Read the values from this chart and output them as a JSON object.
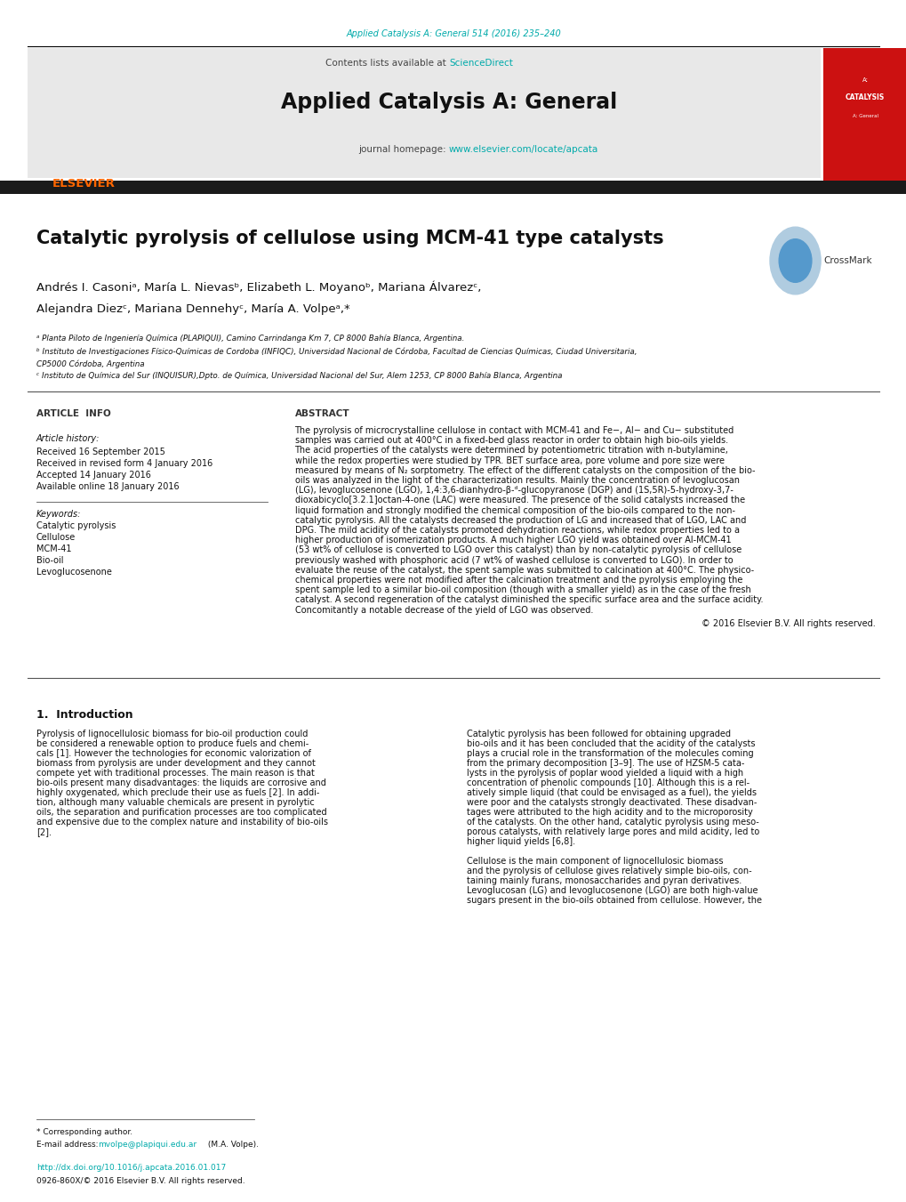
{
  "page_width": 10.2,
  "page_height": 13.51,
  "bg_color": "#ffffff",
  "header_citation": "Applied Catalysis A: General 514 (2016) 235–240",
  "header_citation_color": "#00aaaa",
  "journal_header_bg": "#e8e8e8",
  "journal_name": "Applied Catalysis A: General",
  "contents_text": "Contents lists available at ",
  "sciencedirect_text": "ScienceDirect",
  "sciencedirect_color": "#00aaaa",
  "journal_homepage_text": "journal homepage: ",
  "journal_url": "www.elsevier.com/locate/apcata",
  "journal_url_color": "#00aaaa",
  "elsevier_color": "#ff6600",
  "dark_bar_color": "#1a1a1a",
  "title": "Catalytic pyrolysis of cellulose using MCM-41 type catalysts",
  "author_line1": "Andrés I. Casoniᵃ, María L. Nievasᵇ, Elizabeth L. Moyanoᵇ, Mariana Álvarezᶜ,",
  "author_line2": "Alejandra Diezᶜ, Mariana Dennehyᶜ, María A. Volpeᵃ,*",
  "affiliation_a": "ᵃ Planta Piloto de Ingeniería Química (PLAPIQUI), Camino Carrindanga Km 7, CP 8000 Bahía Blanca, Argentina.",
  "affiliation_b1": "ᵇ Instituto de Investigaciones Físico-Químicas de Cordoba (INFIQC), Universidad Nacional de Córdoba, Facultad de Ciencias Químicas, Ciudad Universitaria,",
  "affiliation_b2": "CP5000 Córdoba, Argentina",
  "affiliation_c": "ᶜ Instituto de Química del Sur (INQUISUR),Dpto. de Química, Universidad Nacional del Sur, Alem 1253, CP 8000 Bahía Blanca, Argentina",
  "article_info_title": "ARTICLE  INFO",
  "article_history_label": "Article history:",
  "received_date": "Received 16 September 2015",
  "revised_date": "Received in revised form 4 January 2016",
  "accepted_date": "Accepted 14 January 2016",
  "available_date": "Available online 18 January 2016",
  "keywords_label": "Keywords:",
  "keyword1": "Catalytic pyrolysis",
  "keyword2": "Cellulose",
  "keyword3": "MCM-41",
  "keyword4": "Bio-oil",
  "keyword5": "Levoglucosenone",
  "abstract_title": "ABSTRACT",
  "abstract_text": "The pyrolysis of microcrystalline cellulose in contact with MCM-41 and Fe−, Al− and Cu− substituted\nsamples was carried out at 400°C in a fixed-bed glass reactor in order to obtain high bio-oils yields.\nThe acid properties of the catalysts were determined by potentiometric titration with n-butylamine,\nwhile the redox properties were studied by TPR. BET surface area, pore volume and pore size were\nmeasured by means of N₂ sorptometry. The effect of the different catalysts on the composition of the bio-\noils was analyzed in the light of the characterization results. Mainly the concentration of levoglucosan\n(LG), levoglucosenone (LGO), 1,4:3,6-dianhydro-β-ᵈ-glucopyranose (DGP) and (1S,5R)-5-hydroxy-3,7-\ndioxabicyclo[3.2.1]octan-4-one (LAC) were measured. The presence of the solid catalysts increased the\nliquid formation and strongly modified the chemical composition of the bio-oils compared to the non-\ncatalytic pyrolysis. All the catalysts decreased the production of LG and increased that of LGO, LAC and\nDPG. The mild acidity of the catalysts promoted dehydration reactions, while redox properties led to a\nhigher production of isomerization products. A much higher LGO yield was obtained over Al-MCM-41\n(53 wt% of cellulose is converted to LGO over this catalyst) than by non-catalytic pyrolysis of cellulose\npreviously washed with phosphoric acid (7 wt% of washed cellulose is converted to LGO). In order to\nevaluate the reuse of the catalyst, the spent sample was submitted to calcination at 400°C. The physico-\nchemical properties were not modified after the calcination treatment and the pyrolysis employing the\nspent sample led to a similar bio-oil composition (though with a smaller yield) as in the case of the fresh\ncatalyst. A second regeneration of the catalyst diminished the specific surface area and the surface acidity.\nConcomitantly a notable decrease of the yield of LGO was observed.",
  "copyright_text": "© 2016 Elsevier B.V. All rights reserved.",
  "intro_title": "1.  Introduction",
  "intro_col1": "Pyrolysis of lignocellulosic biomass for bio-oil production could\nbe considered a renewable option to produce fuels and chemi-\ncals [1]. However the technologies for economic valorization of\nbiomass from pyrolysis are under development and they cannot\ncompete yet with traditional processes. The main reason is that\nbio-oils present many disadvantages: the liquids are corrosive and\nhighly oxygenated, which preclude their use as fuels [2]. In addi-\ntion, although many valuable chemicals are present in pyrolytic\noils, the separation and purification processes are too complicated\nand expensive due to the complex nature and instability of bio-oils\n[2].",
  "intro_col2": "Catalytic pyrolysis has been followed for obtaining upgraded\nbio-oils and it has been concluded that the acidity of the catalysts\nplays a crucial role in the transformation of the molecules coming\nfrom the primary decomposition [3–9]. The use of HZSM-5 cata-\nlysts in the pyrolysis of poplar wood yielded a liquid with a high\nconcentration of phenolic compounds [10]. Although this is a rel-\natively simple liquid (that could be envisaged as a fuel), the yields\nwere poor and the catalysts strongly deactivated. These disadvan-\ntages were attributed to the high acidity and to the microporosity\nof the catalysts. On the other hand, catalytic pyrolysis using meso-\nporous catalysts, with relatively large pores and mild acidity, led to\nhigher liquid yields [6,8].\n\nCellulose is the main component of lignocellulosic biomass\nand the pyrolysis of cellulose gives relatively simple bio-oils, con-\ntaining mainly furans, monosaccharides and pyran derivatives.\nLevoglucosan (LG) and levoglucosenone (LGO) are both high-value\nsugars present in the bio-oils obtained from cellulose. However, the",
  "footnote_asterisk": "* Corresponding author.",
  "footnote_email_label": "E-mail address: ",
  "footnote_email": "mvolpe@plapiqui.edu.ar",
  "footnote_email_color": "#00aaaa",
  "footnote_email_suffix": " (M.A. Volpe).",
  "doi_text": "http://dx.doi.org/10.1016/j.apcata.2016.01.017",
  "doi_color": "#00aaaa",
  "issn_text": "0926-860X/© 2016 Elsevier B.V. All rights reserved."
}
